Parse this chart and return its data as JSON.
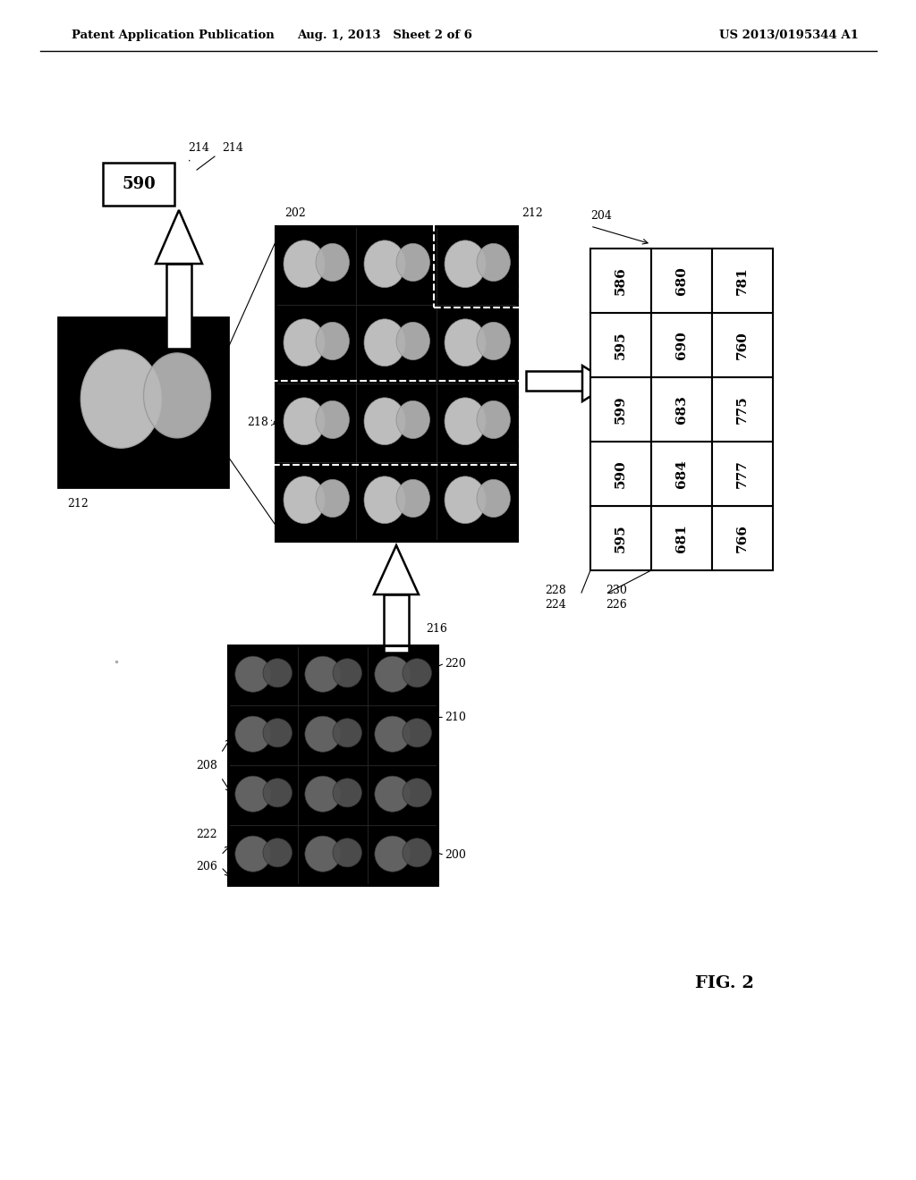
{
  "title_left": "Patent Application Publication",
  "title_mid": "Aug. 1, 2013   Sheet 2 of 6",
  "title_right": "US 2013/0195344 A1",
  "fig_label": "FIG. 2",
  "table_data": [
    [
      "586",
      "680",
      "781"
    ],
    [
      "595",
      "690",
      "760"
    ],
    [
      "599",
      "683",
      "775"
    ],
    [
      "590",
      "684",
      "777"
    ],
    [
      "595",
      "681",
      "766"
    ]
  ],
  "bg_color": "#ffffff"
}
